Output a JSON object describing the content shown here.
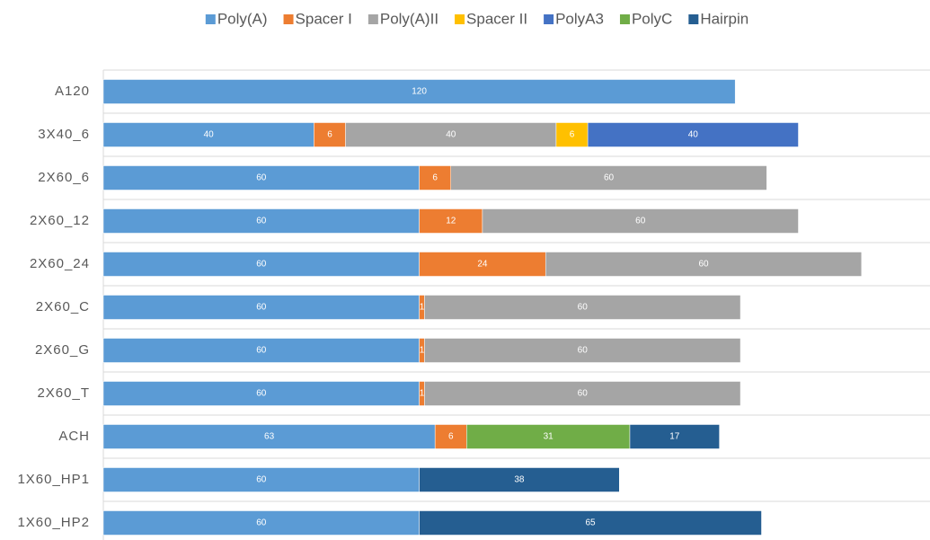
{
  "chart_data": {
    "type": "stacked-barh",
    "categories": [
      "A120",
      "3X40_6",
      "2X60_6",
      "2X60_12",
      "2X60_24",
      "2X60_C",
      "2X60_G",
      "2X60_T",
      "ACH",
      "1X60_HP1",
      "1X60_HP2"
    ],
    "series": [
      {
        "name": "Poly(A)",
        "color": "#5b9bd5",
        "values": [
          120,
          40,
          60,
          60,
          60,
          60,
          60,
          60,
          63,
          60,
          60
        ]
      },
      {
        "name": "Spacer I",
        "color": "#ed7d31",
        "values": [
          null,
          6,
          6,
          12,
          24,
          1,
          1,
          1,
          6,
          null,
          null
        ]
      },
      {
        "name": "Poly(A)II",
        "color": "#a5a5a5",
        "values": [
          null,
          40,
          60,
          60,
          60,
          60,
          60,
          60,
          null,
          null,
          null
        ]
      },
      {
        "name": "Spacer II",
        "color": "#ffc000",
        "values": [
          null,
          6,
          null,
          null,
          null,
          null,
          null,
          null,
          null,
          null,
          null
        ]
      },
      {
        "name": "PolyA3",
        "color": "#4472c4",
        "values": [
          null,
          40,
          null,
          null,
          null,
          null,
          null,
          null,
          null,
          null,
          null
        ]
      },
      {
        "name": "PolyC",
        "color": "#70ad47",
        "values": [
          null,
          null,
          null,
          null,
          null,
          null,
          null,
          null,
          31,
          null,
          null
        ]
      },
      {
        "name": "Hairpin",
        "color": "#255e91",
        "values": [
          null,
          null,
          null,
          null,
          null,
          null,
          null,
          null,
          17,
          38,
          65
        ]
      }
    ],
    "xlim": [
      0,
      157
    ],
    "legend": "top"
  }
}
